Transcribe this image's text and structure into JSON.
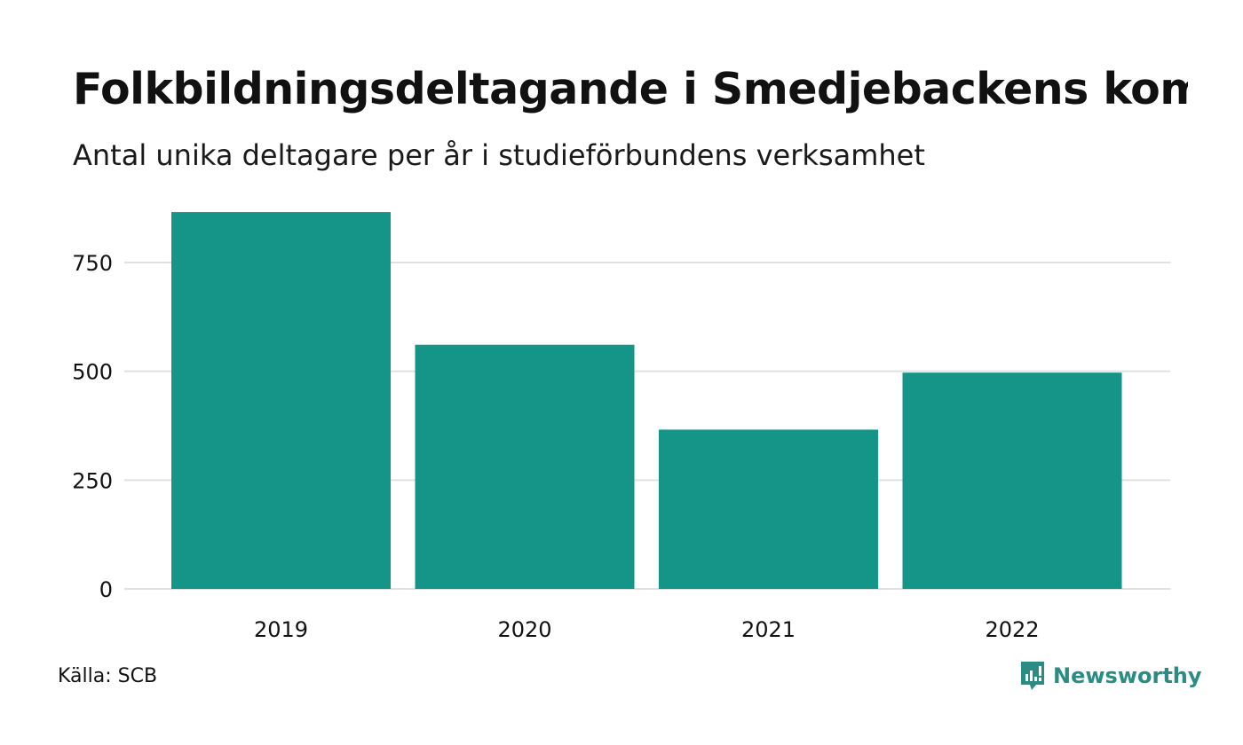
{
  "title": "Folkbildningsdeltagande i Smedjebackens kommun",
  "subtitle": "Antal unika deltagare per år i studieförbundens verksamhet",
  "source": "Källa: SCB",
  "brand": {
    "name": "Newsworthy",
    "icon": "newsworthy-logo-icon",
    "color": "#2a8c82"
  },
  "colors": {
    "bar": "#159588",
    "grid": "#e0e0e0",
    "text": "#111111"
  },
  "chart_data": {
    "type": "bar",
    "categories": [
      "2019",
      "2020",
      "2021",
      "2022"
    ],
    "values": [
      866,
      561,
      366,
      497
    ],
    "ylim": [
      0,
      866
    ],
    "yticks": [
      0,
      250,
      500,
      750
    ],
    "grid": true,
    "legend": "none"
  }
}
